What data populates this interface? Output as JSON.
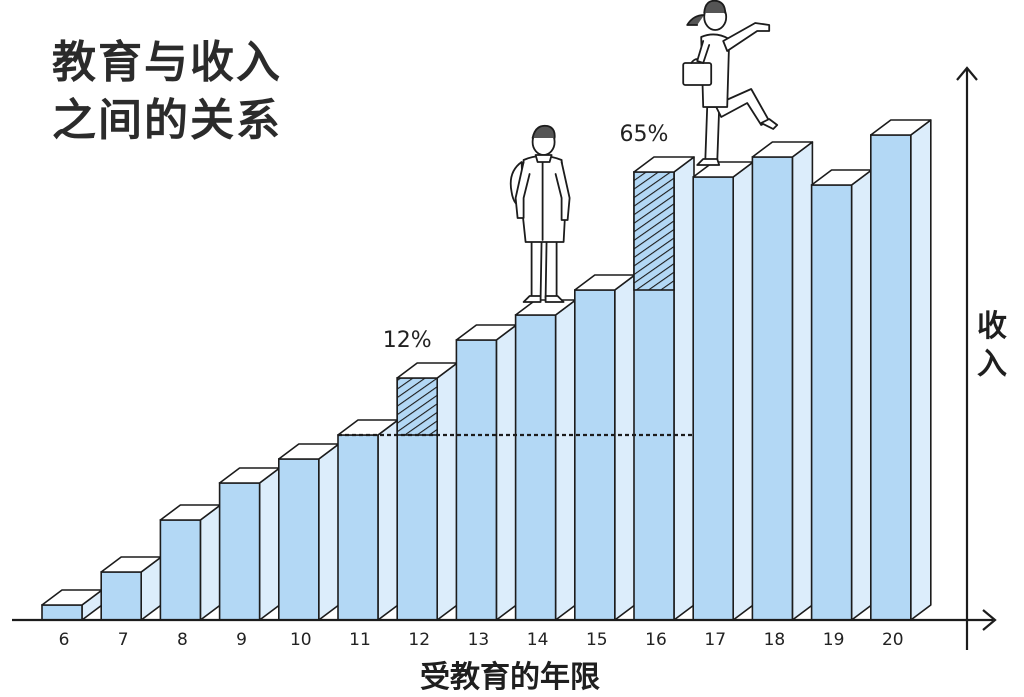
{
  "chart_data": {
    "type": "bar",
    "title": "教育与收入之间的关系",
    "title_lines": [
      "教育与收入",
      "之间的关系"
    ],
    "xlabel": "受教育的年限",
    "ylabel": "收入",
    "categories": [
      "6",
      "7",
      "8",
      "9",
      "10",
      "11",
      "12",
      "13",
      "14",
      "15",
      "16",
      "17",
      "18",
      "19",
      "20"
    ],
    "values": [
      15,
      48,
      100,
      137,
      161,
      185,
      242,
      280,
      305,
      330,
      448,
      443,
      463,
      435,
      485
    ],
    "ylim": [
      0,
      560
    ],
    "grid": false,
    "annotations": [
      {
        "label": "12%",
        "category": "12"
      },
      {
        "label": "65%",
        "category": "16"
      }
    ],
    "hatched_categories": [
      "12",
      "16"
    ],
    "reference_line_category": "11"
  },
  "colors": {
    "bar_front": "#b3d8f5",
    "bar_side": "#dcedfb",
    "bar_top": "#ffffff",
    "outline": "#1c1c1c"
  },
  "figures": [
    {
      "icon": "student-with-backpack-icon",
      "category": "14"
    },
    {
      "icon": "walking-professional-icon",
      "category": "17"
    }
  ]
}
